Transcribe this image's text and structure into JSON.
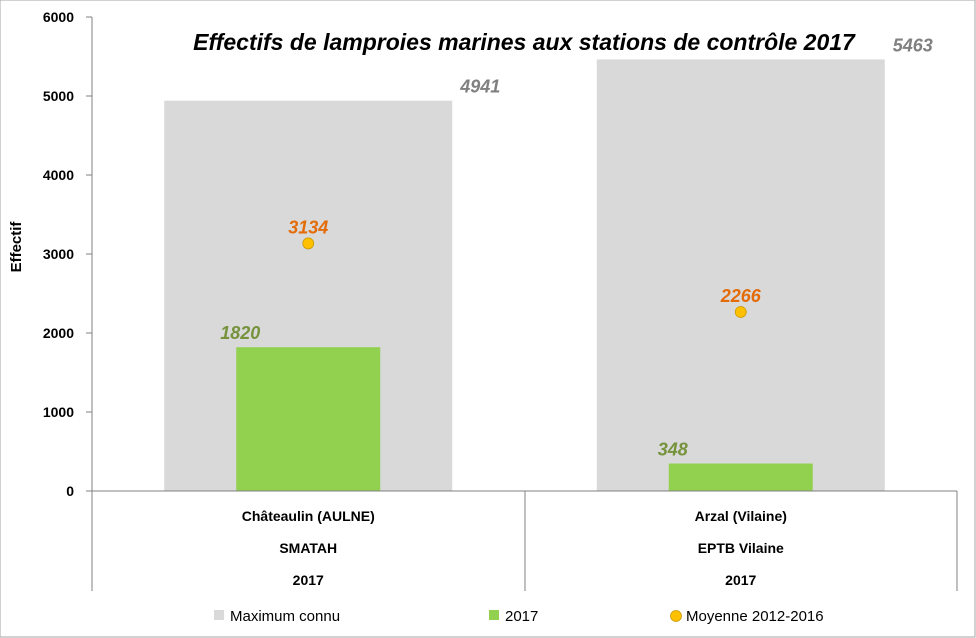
{
  "chart_data": {
    "type": "bar",
    "title": "Effectifs de lamproies marines aux stations de contrôle 2017",
    "ylabel": "Effectif",
    "ylim": [
      0,
      6000
    ],
    "yticks": [
      "0",
      "1000",
      "2000",
      "3000",
      "4000",
      "5000",
      "6000"
    ],
    "categories": [
      {
        "lines": [
          "Châteaulin (AULNE)",
          "SMATAH",
          "2017"
        ]
      },
      {
        "lines": [
          "Arzal (Vilaine)",
          "EPTB Vilaine",
          "2017"
        ]
      }
    ],
    "series": [
      {
        "name": "Maximum connu",
        "kind": "bar-wide",
        "color": "#d9d9d9",
        "label_color": "#808080",
        "values": [
          4941,
          5463
        ],
        "labels": [
          "4941",
          "5463"
        ]
      },
      {
        "name": "2017",
        "kind": "bar-narrow",
        "color": "#92d050",
        "label_color": "#76923c",
        "values": [
          1820,
          348
        ],
        "labels": [
          "1820",
          "348"
        ]
      },
      {
        "name": "Moyenne 2012-2016",
        "kind": "marker",
        "color": "#ffc000",
        "label_color": "#e36c09",
        "values": [
          3134,
          2266
        ],
        "labels": [
          "3134",
          "2266"
        ]
      }
    ],
    "grid": false,
    "legend_position": "bottom"
  }
}
